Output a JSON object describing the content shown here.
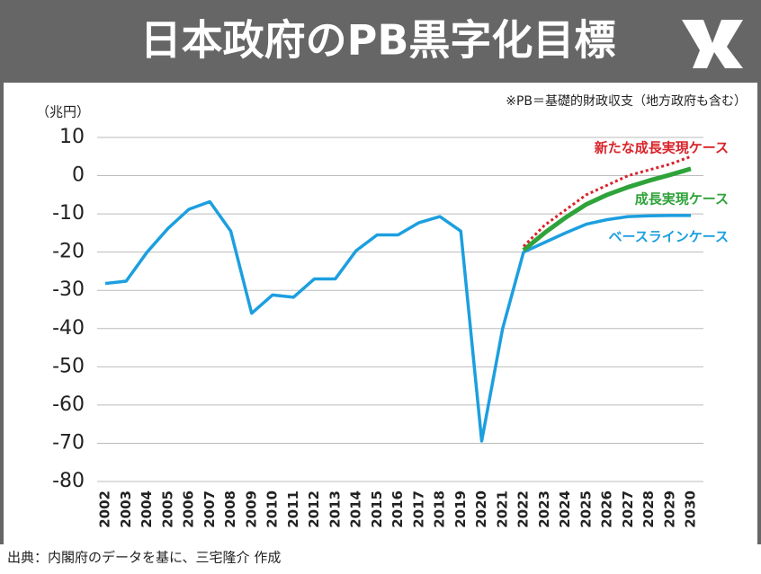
{
  "chart_data": {
    "type": "line",
    "title": "日本政府のPB黒字化目標",
    "y_unit": "（兆円）",
    "note": "※PB＝基礎的財政収支（地方政府も含む）",
    "source": "出典：内閣府のデータを基に、三宅隆介 作成",
    "categories": [
      "2002",
      "2003",
      "2004",
      "2005",
      "2006",
      "2007",
      "2008",
      "2009",
      "2010",
      "2011",
      "2012",
      "2013",
      "2014",
      "2015",
      "2016",
      "2017",
      "2018",
      "2019",
      "2020",
      "2021",
      "2022",
      "2023",
      "2024",
      "2025",
      "2026",
      "2027",
      "2028",
      "2029",
      "2030"
    ],
    "series": [
      {
        "name": "ベースラインケース",
        "color": "#1c9fdf",
        "dash": false,
        "values": [
          -28.2,
          -27.6,
          -20,
          -13.8,
          -8.8,
          -6.8,
          -14.5,
          -36,
          -31.2,
          -31.8,
          -27,
          -27,
          -19.6,
          -15.5,
          -15.5,
          -12.3,
          -10.7,
          -14.5,
          -69.4,
          -40,
          -20,
          -17.5,
          -15,
          -12.7,
          -11.5,
          -10.7,
          -10.5,
          -10.4,
          -10.4
        ]
      },
      {
        "name": "成長実現ケース",
        "color": "#2ea33a",
        "dash": false,
        "values": [
          null,
          null,
          null,
          null,
          null,
          null,
          null,
          null,
          null,
          null,
          null,
          null,
          null,
          null,
          null,
          null,
          null,
          null,
          null,
          null,
          -19.5,
          -15,
          -11,
          -7.5,
          -5,
          -3,
          -1.3,
          0.2,
          1.8
        ]
      },
      {
        "name": "新たな成長実現ケース",
        "color": "#d9232a",
        "dash": true,
        "values": [
          null,
          null,
          null,
          null,
          null,
          null,
          null,
          null,
          null,
          null,
          null,
          null,
          null,
          null,
          null,
          null,
          null,
          null,
          null,
          null,
          -18.5,
          -13,
          -9,
          -5,
          -2.5,
          0,
          1.5,
          3,
          5
        ]
      }
    ],
    "ylim": [
      -80,
      10
    ],
    "yticks": [
      -80,
      -70,
      -60,
      -50,
      -40,
      -30,
      -20,
      -10,
      0,
      10
    ],
    "grid": true
  }
}
